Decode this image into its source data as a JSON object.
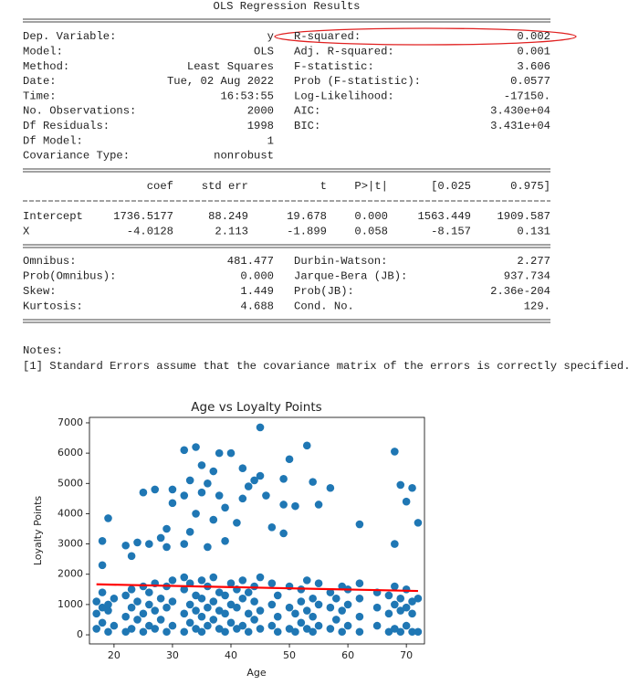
{
  "ols": {
    "title": "OLS Regression Results",
    "top_rows": [
      [
        "Dep. Variable:",
        "y",
        "R-squared:",
        "0.002"
      ],
      [
        "Model:",
        "OLS",
        "Adj. R-squared:",
        "0.001"
      ],
      [
        "Method:",
        "Least Squares",
        "F-statistic:",
        "3.606"
      ],
      [
        "Date:",
        "Tue, 02 Aug 2022",
        "Prob (F-statistic):",
        "0.0577"
      ],
      [
        "Time:",
        "16:53:55",
        "Log-Likelihood:",
        "-17150."
      ],
      [
        "No. Observations:",
        "2000",
        "AIC:",
        "3.430e+04"
      ],
      [
        "Df Residuals:",
        "1998",
        "BIC:",
        "3.431e+04"
      ],
      [
        "Df Model:",
        "1"
      ],
      [
        "Covariance Type:",
        "nonrobust"
      ]
    ],
    "coef_header": [
      "coef",
      "std err",
      "t",
      "P>|t|",
      "[0.025",
      "0.975]"
    ],
    "coef_rows": [
      [
        "Intercept",
        "1736.5177",
        "88.249",
        "19.678",
        "0.000",
        "1563.449",
        "1909.587"
      ],
      [
        "X",
        "-4.0128",
        "2.113",
        "-1.899",
        "0.058",
        "-8.157",
        "0.131"
      ]
    ],
    "diag_rows": [
      [
        "Omnibus:",
        "481.477",
        "Durbin-Watson:",
        "2.277"
      ],
      [
        "Prob(Omnibus):",
        "0.000",
        "Jarque-Bera (JB):",
        "937.734"
      ],
      [
        "Skew:",
        "1.449",
        "Prob(JB):",
        "2.36e-204"
      ],
      [
        "Kurtosis:",
        "4.688",
        "Cond. No.",
        "129."
      ]
    ],
    "notes_title": "Notes:",
    "notes": [
      "[1] Standard Errors assume that the covariance matrix of the errors is correctly specified."
    ]
  },
  "chart_data": {
    "type": "scatter",
    "title": "Age vs Loyalty Points",
    "x_label": "Age",
    "y_label": "Loyalty Points",
    "xlim": [
      15.8,
      73.1
    ],
    "ylim": [
      -300,
      7180
    ],
    "xticks": [
      20,
      30,
      40,
      50,
      60,
      70
    ],
    "yticks": [
      0,
      1000,
      2000,
      3000,
      4000,
      5000,
      6000,
      7000
    ],
    "series": [
      {
        "type": "scatter",
        "color": "#1f77b4",
        "x": [
          17,
          17,
          17,
          18,
          18,
          18,
          19,
          19,
          19,
          20,
          20,
          22,
          22,
          22,
          23,
          23,
          23,
          24,
          24,
          25,
          25,
          25,
          26,
          26,
          26,
          27,
          27,
          27,
          28,
          28,
          29,
          29,
          29,
          30,
          30,
          30,
          32,
          32,
          32,
          32,
          33,
          33,
          33,
          34,
          34,
          34,
          35,
          35,
          35,
          35,
          36,
          36,
          36,
          37,
          37,
          37,
          38,
          38,
          38,
          39,
          39,
          39,
          40,
          40,
          40,
          41,
          41,
          41,
          42,
          42,
          42,
          43,
          43,
          43,
          44,
          44,
          44,
          45,
          45,
          45,
          47,
          47,
          47,
          48,
          48,
          48,
          50,
          50,
          50,
          51,
          51,
          52,
          52,
          52,
          53,
          53,
          53,
          54,
          54,
          54,
          55,
          55,
          55,
          57,
          57,
          57,
          58,
          58,
          59,
          59,
          59,
          60,
          60,
          60,
          62,
          62,
          62,
          62,
          65,
          65,
          65,
          67,
          67,
          67,
          68,
          68,
          68,
          69,
          69,
          69,
          70,
          70,
          70,
          71,
          71,
          71,
          72,
          72,
          18,
          18,
          19,
          22,
          23,
          24,
          25,
          26,
          27,
          28,
          29,
          29,
          30,
          30,
          32,
          32,
          32,
          33,
          33,
          34,
          34,
          35,
          35,
          36,
          36,
          37,
          37,
          38,
          38,
          39,
          39,
          40,
          41,
          42,
          42,
          43,
          44,
          45,
          45,
          46,
          47,
          49,
          49,
          49,
          50,
          51,
          53,
          54,
          55,
          57,
          62,
          68,
          68,
          69,
          70,
          71,
          72
        ],
        "values": [
          200,
          700,
          1100,
          400,
          900,
          1400,
          100,
          800,
          1000,
          300,
          1200,
          100,
          600,
          1300,
          200,
          900,
          1500,
          500,
          1100,
          100,
          700,
          1600,
          300,
          1000,
          1400,
          200,
          800,
          1700,
          500,
          1200,
          100,
          900,
          1600,
          300,
          1100,
          1800,
          100,
          700,
          1500,
          1900,
          400,
          1000,
          1700,
          200,
          800,
          1300,
          100,
          600,
          1200,
          1800,
          300,
          900,
          1600,
          500,
          1100,
          1900,
          200,
          800,
          1400,
          100,
          700,
          1300,
          400,
          1000,
          1700,
          200,
          900,
          1500,
          300,
          1200,
          1800,
          100,
          700,
          1400,
          500,
          1100,
          1600,
          200,
          800,
          1900,
          300,
          1000,
          1700,
          100,
          600,
          1300,
          200,
          900,
          1600,
          100,
          700,
          400,
          1100,
          1500,
          200,
          800,
          1800,
          100,
          600,
          1200,
          300,
          1000,
          1700,
          200,
          900,
          1400,
          500,
          1200,
          100,
          800,
          1600,
          300,
          1000,
          1500,
          100,
          600,
          1200,
          1700,
          300,
          900,
          1400,
          100,
          700,
          1300,
          200,
          1000,
          1600,
          100,
          800,
          1200,
          300,
          900,
          1500,
          100,
          700,
          1100,
          100,
          1200,
          2300,
          3100,
          3850,
          2950,
          2600,
          3050,
          4700,
          3000,
          4800,
          3200,
          2900,
          3500,
          4350,
          4800,
          3000,
          4600,
          6100,
          3400,
          5100,
          6200,
          4000,
          4700,
          5600,
          5000,
          2900,
          5400,
          3800,
          4600,
          6000,
          3100,
          4200,
          6000,
          3700,
          4500,
          5500,
          4900,
          5100,
          6850,
          5250,
          4600,
          3550,
          4300,
          3350,
          5150,
          5800,
          4250,
          6250,
          5050,
          4300,
          4850,
          3650,
          6050,
          3000,
          4950,
          4400,
          4850,
          3700
        ]
      },
      {
        "type": "line",
        "color": "#ff0000",
        "x": [
          17,
          72
        ],
        "values": [
          1668,
          1448
        ]
      }
    ]
  }
}
